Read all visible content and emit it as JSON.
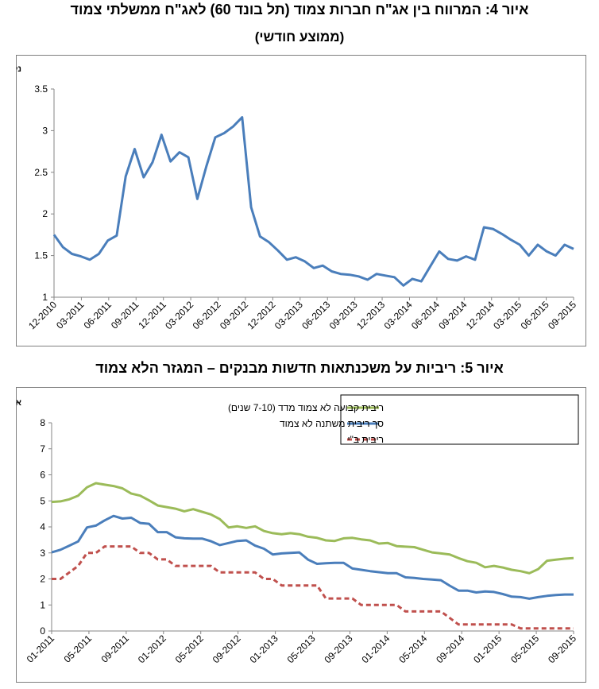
{
  "figures": {
    "fig4_title": "איור 4: המרווח בין אג\"ח חברות צמוד (תל בונד 60) לאג\"ח ממשלתי צמוד",
    "fig4_subtitle": "(ממוצע חודשי)",
    "fig5_title": "איור 5: ריביות על משכנתאות חדשות מבנקים – המגזר הלא צמוד"
  },
  "colors": {
    "blue": "#4a7ebb",
    "green": "#9bbb59",
    "red": "#c0504d",
    "axis": "#868686"
  },
  "chart_data": [
    {
      "type": "line",
      "ylabel": "נק' אחוז",
      "ylim": [
        1,
        3.5
      ],
      "yticks": [
        "1",
        "1.5",
        "2",
        "2.5",
        "3",
        "3.5"
      ],
      "xtick_labels": [
        "12-2010",
        "03-2011",
        "06-2011",
        "09-2011",
        "12-2011",
        "03-2012",
        "06-2012",
        "09-2012",
        "12-2012",
        "03-2013",
        "06-2013",
        "09-2013",
        "12-2013",
        "03-2014",
        "06-2014",
        "09-2014",
        "12-2014",
        "03-2015",
        "06-2015",
        "09-2015"
      ],
      "grid": false,
      "series": [
        {
          "color": "#4a7ebb",
          "values": [
            1.75,
            1.6,
            1.52,
            1.49,
            1.45,
            1.52,
            1.68,
            1.74,
            2.45,
            2.78,
            2.44,
            2.62,
            2.95,
            2.63,
            2.74,
            2.68,
            2.18,
            2.57,
            2.92,
            2.97,
            3.05,
            3.16,
            2.08,
            1.73,
            1.66,
            1.56,
            1.45,
            1.48,
            1.43,
            1.35,
            1.38,
            1.31,
            1.28,
            1.27,
            1.25,
            1.21,
            1.28,
            1.26,
            1.24,
            1.14,
            1.22,
            1.19,
            1.37,
            1.55,
            1.46,
            1.44,
            1.49,
            1.45,
            1.84,
            1.82,
            1.76,
            1.69,
            1.63,
            1.5,
            1.63,
            1.55,
            1.5,
            1.63,
            1.58
          ]
        }
      ]
    },
    {
      "type": "line",
      "ylabel": "אחוזים",
      "ylim": [
        0,
        8
      ],
      "yticks": [
        "0",
        "1",
        "2",
        "3",
        "4",
        "5",
        "6",
        "7",
        "8"
      ],
      "xtick_labels": [
        "01-2011",
        "05-2011",
        "09-2011",
        "01-2012",
        "05-2012",
        "09-2012",
        "01-2013",
        "05-2013",
        "09-2013",
        "01-2014",
        "05-2014",
        "09-2014",
        "01-2015",
        "05-2015",
        "09-2015"
      ],
      "grid": false,
      "legend_position": "top-right",
      "series": [
        {
          "name": "ריבית קבועה לא צמוד מדד (7-10 שנים)",
          "color": "#9bbb59",
          "style": "solid",
          "values": [
            4.96,
            4.98,
            5.06,
            5.2,
            5.52,
            5.68,
            5.62,
            5.57,
            5.48,
            5.28,
            5.2,
            5.02,
            4.82,
            4.76,
            4.7,
            4.6,
            4.68,
            4.58,
            4.48,
            4.3,
            3.98,
            4.02,
            3.96,
            4.02,
            3.84,
            3.76,
            3.72,
            3.76,
            3.72,
            3.62,
            3.58,
            3.48,
            3.46,
            3.56,
            3.58,
            3.52,
            3.48,
            3.36,
            3.38,
            3.26,
            3.24,
            3.22,
            3.12,
            3.02,
            2.98,
            2.94,
            2.8,
            2.68,
            2.62,
            2.45,
            2.5,
            2.44,
            2.35,
            2.3,
            2.22,
            2.38,
            2.7,
            2.74,
            2.78,
            2.8
          ]
        },
        {
          "name": "סך ריבית משתנה לא צמוד",
          "color": "#4a7ebb",
          "style": "solid",
          "values": [
            3.02,
            3.12,
            3.28,
            3.44,
            3.98,
            4.05,
            4.25,
            4.42,
            4.32,
            4.35,
            4.15,
            4.12,
            3.8,
            3.8,
            3.6,
            3.56,
            3.55,
            3.55,
            3.45,
            3.3,
            3.38,
            3.46,
            3.48,
            3.28,
            3.16,
            2.94,
            2.98,
            3.0,
            3.02,
            2.74,
            2.58,
            2.6,
            2.62,
            2.62,
            2.4,
            2.35,
            2.3,
            2.26,
            2.22,
            2.22,
            2.06,
            2.04,
            2.0,
            1.98,
            1.95,
            1.74,
            1.55,
            1.55,
            1.48,
            1.52,
            1.5,
            1.42,
            1.32,
            1.3,
            1.24,
            1.3,
            1.35,
            1.38,
            1.4,
            1.4
          ]
        },
        {
          "name": "ריבית ב\"י",
          "color": "#c0504d",
          "style": "dashed",
          "values": [
            2.0,
            2.0,
            2.25,
            2.5,
            3.0,
            3.0,
            3.25,
            3.25,
            3.25,
            3.25,
            3.0,
            3.0,
            2.75,
            2.75,
            2.5,
            2.5,
            2.5,
            2.5,
            2.5,
            2.25,
            2.25,
            2.25,
            2.25,
            2.25,
            2.0,
            2.0,
            1.75,
            1.75,
            1.75,
            1.75,
            1.75,
            1.25,
            1.25,
            1.25,
            1.25,
            1.0,
            1.0,
            1.0,
            1.0,
            1.0,
            0.75,
            0.75,
            0.75,
            0.75,
            0.75,
            0.5,
            0.25,
            0.25,
            0.25,
            0.25,
            0.25,
            0.25,
            0.25,
            0.1,
            0.1,
            0.1,
            0.1,
            0.1,
            0.1,
            0.1
          ]
        }
      ]
    }
  ]
}
